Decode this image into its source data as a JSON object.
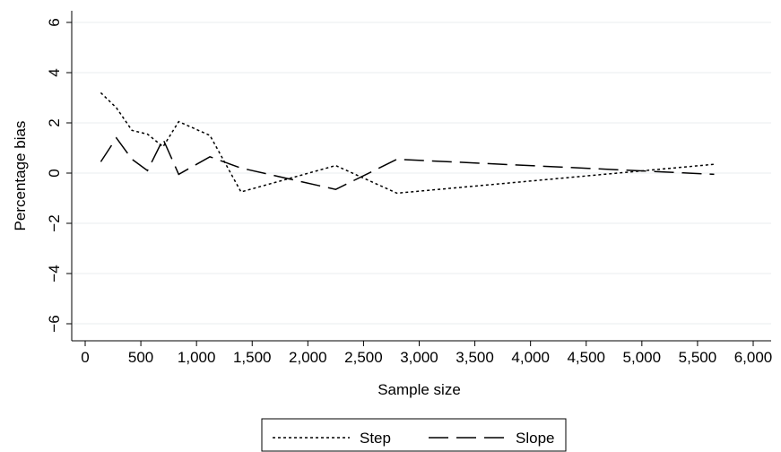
{
  "chart_data": {
    "type": "line",
    "xlabel": "Sample size",
    "ylabel": "Percentage bias",
    "xlim": [
      0,
      6000
    ],
    "ylim": [
      -7,
      6.5
    ],
    "x_ticks": [
      0,
      500,
      1000,
      1500,
      2000,
      2500,
      3000,
      3500,
      4000,
      4500,
      5000,
      5500,
      6000
    ],
    "x_tick_labels": [
      "0",
      "500",
      "1,000",
      "1,500",
      "2,000",
      "2,500",
      "3,000",
      "3,500",
      "4,000",
      "4,500",
      "5,000",
      "5,500",
      "6,000"
    ],
    "y_ticks": [
      -6,
      -4,
      -2,
      0,
      2,
      4,
      6
    ],
    "y_tick_labels": [
      "−6",
      "−4",
      "−2",
      "0",
      "2",
      "4",
      "6"
    ],
    "grid": true,
    "legend_position": "bottom",
    "series": [
      {
        "name": "Step",
        "line_style": "dotted",
        "x": [
          140,
          280,
          420,
          560,
          700,
          840,
          1120,
          1400,
          2250,
          2800,
          5650
        ],
        "y": [
          3.2,
          2.6,
          1.7,
          1.55,
          1.05,
          2.05,
          1.5,
          -0.75,
          0.3,
          -0.8,
          0.35
        ]
      },
      {
        "name": "Slope",
        "line_style": "long-dash",
        "x": [
          140,
          280,
          420,
          560,
          700,
          840,
          1120,
          1400,
          2250,
          2800,
          5650
        ],
        "y": [
          0.45,
          1.4,
          0.55,
          0.1,
          1.35,
          -0.05,
          0.65,
          0.2,
          -0.65,
          0.55,
          -0.05
        ]
      }
    ]
  }
}
